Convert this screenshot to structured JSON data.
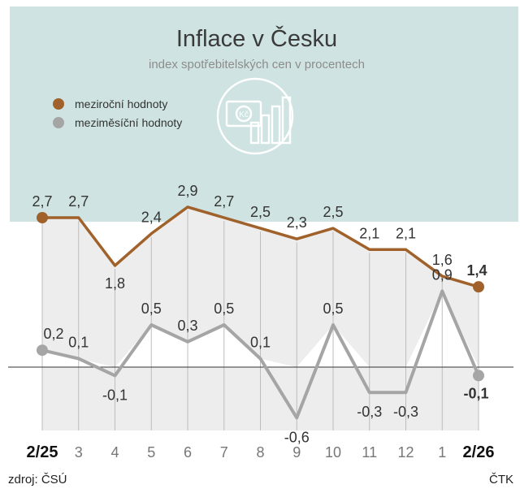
{
  "chart_data": {
    "type": "line",
    "title": "Inflace v Česku",
    "subtitle": "index spotřebitelských cen v procentech",
    "categories": [
      "2/25",
      "3",
      "4",
      "5",
      "6",
      "7",
      "8",
      "9",
      "10",
      "11",
      "12",
      "1",
      "2/26"
    ],
    "series": [
      {
        "name": "meziroční hodnoty",
        "values": [
          2.7,
          2.7,
          1.8,
          2.4,
          2.9,
          2.7,
          2.5,
          2.3,
          2.5,
          2.1,
          2.1,
          1.6,
          1.4
        ],
        "labels": [
          "2,7",
          "2,7",
          "1,8",
          "2,4",
          "2,9",
          "2,7",
          "2,5",
          "2,3",
          "2,5",
          "2,1",
          "2,1",
          "1,6",
          "1,4"
        ]
      },
      {
        "name": "meziměsíční hodnoty",
        "values": [
          0.2,
          0.1,
          -0.1,
          0.5,
          0.3,
          0.5,
          0.1,
          -0.6,
          0.5,
          -0.3,
          -0.3,
          0.9,
          -0.1
        ],
        "labels": [
          "0,2",
          "0,1",
          "-0,1",
          "0,5",
          "0,3",
          "0,5",
          "0,1",
          "-0,6",
          "0,5",
          "-0,3",
          "-0,3",
          "0,9",
          "-0,1"
        ]
      }
    ],
    "legend_position": "top-left",
    "colors": {
      "annual": "#a0622a",
      "monthly": "#a5a5a5",
      "background_top": "#cfe4e2",
      "background_area": "#ededed"
    }
  },
  "source": "zdroj: ČSÚ",
  "credit": "ČTK",
  "icon": "chart-money-icon"
}
